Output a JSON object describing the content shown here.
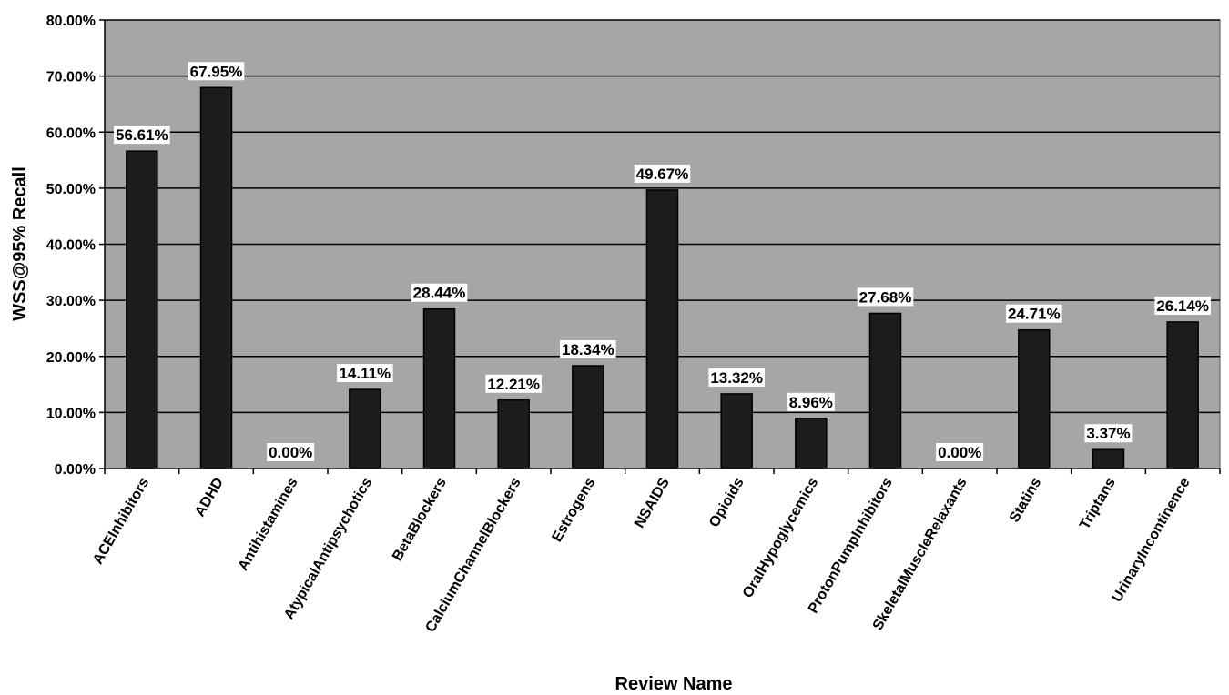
{
  "chart_data": {
    "type": "bar",
    "title": "",
    "xlabel": "Review Name",
    "ylabel": "WSS@95% Recall",
    "ylim": [
      0,
      80
    ],
    "yticks": [
      0,
      10,
      20,
      30,
      40,
      50,
      60,
      70,
      80
    ],
    "ytick_labels": [
      "0.00%",
      "10.00%",
      "20.00%",
      "30.00%",
      "40.00%",
      "50.00%",
      "60.00%",
      "70.00%",
      "80.00%"
    ],
    "grid": true,
    "legend": "none",
    "categories": [
      "ACEInhibitors",
      "ADHD",
      "Antihistamines",
      "AtypicalAntipsychotics",
      "BetaBlockers",
      "CalciumChannelBlockers",
      "Estrogens",
      "NSAIDS",
      "Opioids",
      "OralHypoglycemics",
      "ProtonPumpInhibitors",
      "SkeletalMuscleRelaxants",
      "Statins",
      "Triptans",
      "UrinaryIncontinence"
    ],
    "values": [
      56.61,
      67.95,
      0.0,
      14.11,
      28.44,
      12.21,
      18.34,
      49.67,
      13.32,
      8.96,
      27.68,
      0.0,
      24.71,
      3.37,
      26.14
    ],
    "value_labels": [
      "56.61%",
      "67.95%",
      "0.00%",
      "14.11%",
      "28.44%",
      "12.21%",
      "18.34%",
      "49.67%",
      "13.32%",
      "8.96%",
      "27.68%",
      "0.00%",
      "24.71%",
      "3.37%",
      "26.14%"
    ],
    "colors": {
      "plot_background": "#a6a6a6",
      "bar_fill": "#1c1c1c",
      "gridline": "#000000"
    }
  }
}
